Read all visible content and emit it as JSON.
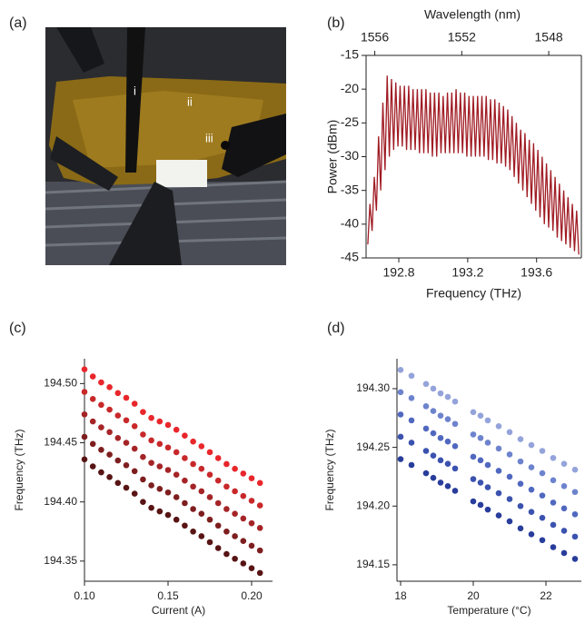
{
  "photo": {
    "panel_label": "(a)",
    "annotations": [
      "i",
      "ii",
      "iii"
    ]
  },
  "chart_data": [
    {
      "type": "line",
      "panel_label": "(b)",
      "xlabel": "Frequency (THz)",
      "ylabel": "Power (dBm)",
      "x2label": "Wavelength (nm)",
      "color": "#a01c24",
      "xlim": [
        192.61,
        193.86
      ],
      "xticks": [
        192.8,
        193.2,
        193.6
      ],
      "x2lim": [
        1556.4,
        1546.5
      ],
      "x2ticks": [
        1556,
        1552,
        1548
      ],
      "ylim": [
        -45,
        -15
      ],
      "yticks": [
        -15,
        -20,
        -25,
        -30,
        -35,
        -40,
        -45
      ],
      "x": [
        192.62,
        192.6325,
        192.645,
        192.6575,
        192.67,
        192.6825,
        192.695,
        192.7075,
        192.72,
        192.7325,
        192.745,
        192.7575,
        192.77,
        192.7825,
        192.795,
        192.8075,
        192.82,
        192.8325,
        192.845,
        192.8575,
        192.87,
        192.8825,
        192.895,
        192.9075,
        192.92,
        192.9325,
        192.945,
        192.9575,
        192.97,
        192.9825,
        192.995,
        193.0075,
        193.02,
        193.0325,
        193.045,
        193.0575,
        193.07,
        193.0825,
        193.095,
        193.1075,
        193.12,
        193.1325,
        193.145,
        193.1575,
        193.17,
        193.1825,
        193.195,
        193.2075,
        193.22,
        193.2325,
        193.245,
        193.2575,
        193.27,
        193.2825,
        193.295,
        193.3075,
        193.32,
        193.3325,
        193.345,
        193.3575,
        193.37,
        193.3825,
        193.395,
        193.4075,
        193.42,
        193.4325,
        193.445,
        193.4575,
        193.47,
        193.4825,
        193.495,
        193.5075,
        193.52,
        193.5325,
        193.545,
        193.5575,
        193.57,
        193.5825,
        193.595,
        193.6075,
        193.62,
        193.6325,
        193.645,
        193.6575,
        193.67,
        193.6825,
        193.695,
        193.7075,
        193.72,
        193.7325,
        193.745,
        193.7575,
        193.77,
        193.7825,
        193.795,
        193.8075,
        193.82,
        193.8325,
        193.845
      ],
      "values": [
        -43,
        -37,
        -41,
        -33,
        -38,
        -27,
        -35,
        -22,
        -32,
        -18,
        -30,
        -18.5,
        -29,
        -19,
        -28.5,
        -19.5,
        -28.5,
        -19.5,
        -29,
        -19.5,
        -29,
        -20,
        -29,
        -20,
        -29.5,
        -20,
        -29.5,
        -20,
        -29.5,
        -20.5,
        -30,
        -20.5,
        -30,
        -20.5,
        -29.5,
        -21,
        -29.5,
        -20.5,
        -29.5,
        -20.5,
        -29.5,
        -20,
        -29.5,
        -20.5,
        -29.5,
        -20.5,
        -30,
        -21,
        -30,
        -21,
        -30,
        -21,
        -30,
        -21,
        -30,
        -21,
        -30.5,
        -21.5,
        -30.5,
        -21.5,
        -31,
        -22,
        -31,
        -22.5,
        -31.5,
        -23,
        -32,
        -24,
        -33,
        -25,
        -34,
        -26,
        -35,
        -26.5,
        -36,
        -27.5,
        -37,
        -28,
        -38,
        -29,
        -39,
        -30,
        -40,
        -31,
        -40.5,
        -32,
        -41,
        -33,
        -42,
        -34,
        -42.5,
        -35,
        -43,
        -36,
        -43.5,
        -37,
        -44,
        -38,
        -44.5
      ]
    },
    {
      "type": "scatter",
      "panel_label": "(c)",
      "xlabel": "Current (A)",
      "ylabel": "Frequency (THz)",
      "xlim": [
        0.1,
        0.2125
      ],
      "xticks": [
        {
          "value": 0.1,
          "label": "0.10"
        },
        0.15,
        {
          "value": 0.2,
          "label": "0.20"
        }
      ],
      "ylim": [
        194.333,
        194.521
      ],
      "yticks": [
        194.35,
        {
          "value": 194.4,
          "label": "194.40"
        },
        194.45,
        {
          "value": 194.5,
          "label": "194.50"
        }
      ],
      "x": [
        0.1,
        0.105,
        0.11,
        0.115,
        0.12,
        0.125,
        0.13,
        0.135,
        0.14,
        0.145,
        0.15,
        0.155,
        0.16,
        0.165,
        0.17,
        0.175,
        0.18,
        0.185,
        0.19,
        0.195,
        0.2,
        0.205
      ],
      "series": [
        {
          "color": "#e8262b",
          "values": [
            194.512,
            194.506,
            194.501,
            194.497,
            194.492,
            194.488,
            194.483,
            194.476,
            194.471,
            194.468,
            194.465,
            194.461,
            194.456,
            194.451,
            194.447,
            194.442,
            194.437,
            194.432,
            194.428,
            194.424,
            194.42,
            194.416
          ]
        },
        {
          "color": "#c8282a",
          "values": [
            194.493,
            194.487,
            194.482,
            194.478,
            194.473,
            194.469,
            194.464,
            194.457,
            194.452,
            194.449,
            194.446,
            194.442,
            194.437,
            194.432,
            194.428,
            194.423,
            194.418,
            194.413,
            194.409,
            194.405,
            194.401,
            194.397
          ]
        },
        {
          "color": "#a52427",
          "values": [
            194.474,
            194.468,
            194.463,
            194.459,
            194.454,
            194.45,
            194.445,
            194.438,
            194.433,
            194.43,
            194.427,
            194.423,
            194.418,
            194.413,
            194.409,
            194.404,
            194.399,
            194.394,
            194.39,
            194.386,
            194.382,
            194.378
          ]
        },
        {
          "color": "#7e1e1f",
          "values": [
            194.455,
            194.449,
            194.444,
            194.44,
            194.435,
            194.431,
            194.426,
            194.419,
            194.414,
            194.411,
            194.408,
            194.404,
            194.399,
            194.394,
            194.39,
            194.385,
            194.38,
            194.375,
            194.371,
            194.367,
            194.363,
            194.359
          ]
        },
        {
          "color": "#581414",
          "values": [
            194.436,
            194.43,
            194.425,
            194.421,
            194.416,
            194.412,
            194.407,
            194.4,
            194.395,
            194.392,
            194.389,
            194.385,
            194.38,
            194.375,
            194.371,
            194.366,
            194.361,
            194.356,
            194.352,
            194.348,
            194.344,
            194.34
          ]
        }
      ]
    },
    {
      "type": "scatter",
      "panel_label": "(d)",
      "xlabel": "Temperature (°C)",
      "ylabel": "Frequency (THz)",
      "xlim": [
        17.9,
        22.975
      ],
      "xticks": [
        18,
        20,
        22
      ],
      "ylim": [
        194.136,
        194.3255
      ],
      "yticks": [
        194.15,
        {
          "value": 194.2,
          "label": "194.20"
        },
        194.25,
        {
          "value": 194.3,
          "label": "194.30"
        }
      ],
      "x": [
        18.0,
        18.3,
        18.7,
        18.9,
        19.1,
        19.3,
        19.5,
        20.0,
        20.2,
        20.4,
        20.7,
        21.0,
        21.3,
        21.6,
        21.9,
        22.2,
        22.5,
        22.8
      ],
      "series": [
        {
          "color": "#94a3da",
          "values": [
            194.316,
            194.311,
            194.304,
            194.3,
            194.296,
            194.293,
            194.289,
            194.28,
            194.277,
            194.273,
            194.268,
            194.263,
            194.257,
            194.252,
            194.247,
            194.241,
            194.236,
            194.231
          ]
        },
        {
          "color": "#6d83cd",
          "values": [
            194.297,
            194.292,
            194.285,
            194.281,
            194.277,
            194.274,
            194.27,
            194.261,
            194.258,
            194.254,
            194.249,
            194.244,
            194.238,
            194.233,
            194.228,
            194.222,
            194.217,
            194.212
          ]
        },
        {
          "color": "#5068bf",
          "values": [
            194.278,
            194.273,
            194.266,
            194.262,
            194.258,
            194.255,
            194.251,
            194.242,
            194.239,
            194.235,
            194.23,
            194.225,
            194.219,
            194.214,
            194.209,
            194.203,
            194.198,
            194.193
          ]
        },
        {
          "color": "#3b52ae",
          "values": [
            194.259,
            194.254,
            194.247,
            194.243,
            194.239,
            194.236,
            194.232,
            194.223,
            194.22,
            194.216,
            194.211,
            194.206,
            194.2,
            194.195,
            194.19,
            194.184,
            194.179,
            194.174
          ]
        },
        {
          "color": "#283d9b",
          "values": [
            194.24,
            194.235,
            194.228,
            194.224,
            194.22,
            194.217,
            194.213,
            194.204,
            194.201,
            194.197,
            194.192,
            194.187,
            194.181,
            194.176,
            194.171,
            194.165,
            194.16,
            194.155
          ]
        }
      ]
    }
  ]
}
